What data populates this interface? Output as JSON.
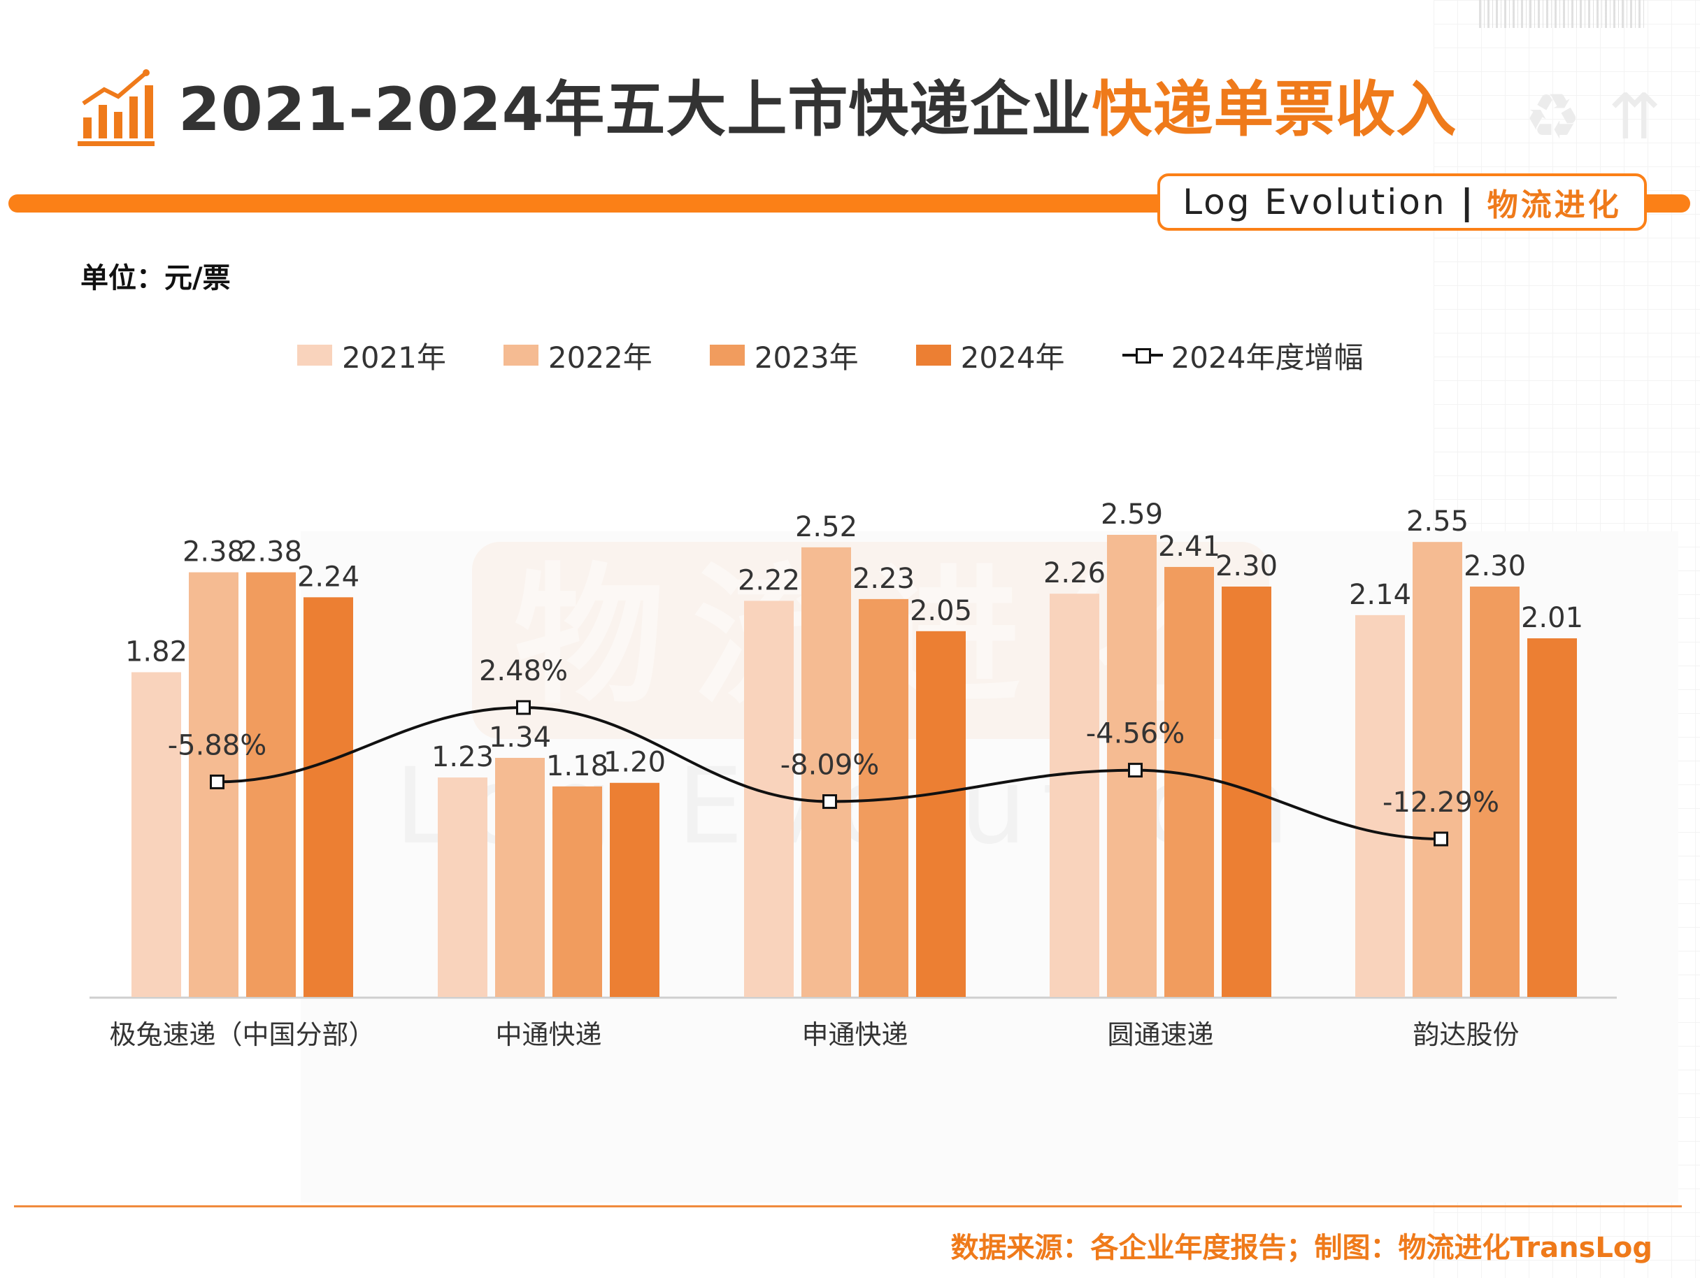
{
  "header": {
    "title_main": "2021-2024年五大上市快递企业",
    "title_highlight": "快递单票收入"
  },
  "brand": {
    "name_en": "Log Evolution",
    "separator": "|",
    "name_cn": "物流进化"
  },
  "unit_label": "单位：元/票",
  "watermark": {
    "cn": "物流进化",
    "en": "Log Evolution"
  },
  "legend": {
    "items": [
      {
        "label": "2021年",
        "color": "#f9d3bc"
      },
      {
        "label": "2022年",
        "color": "#f5bb92"
      },
      {
        "label": "2023年",
        "color": "#f19c5e"
      },
      {
        "label": "2024年",
        "color": "#ec7f33"
      }
    ],
    "line_label": "2024年度增幅"
  },
  "chart_data": {
    "type": "bar",
    "categories": [
      "极兔速递（中国分部）",
      "中通快递",
      "申通快递",
      "圆通速递",
      "韵达股份"
    ],
    "series": [
      {
        "name": "2021年",
        "values": [
          1.82,
          1.23,
          2.22,
          2.26,
          2.14
        ],
        "labels": [
          "1.82",
          "1.23",
          "2.22",
          "2.26",
          "2.14"
        ],
        "color": "#f9d3bc"
      },
      {
        "name": "2022年",
        "values": [
          2.38,
          1.34,
          2.52,
          2.59,
          2.55
        ],
        "labels": [
          "2.38",
          "1.34",
          "2.52",
          "2.59",
          "2.55"
        ],
        "color": "#f5bb92"
      },
      {
        "name": "2023年",
        "values": [
          2.38,
          1.18,
          2.23,
          2.41,
          2.3
        ],
        "labels": [
          "2.38",
          "1.18",
          "2.23",
          "2.41",
          "2.30"
        ],
        "color": "#f19c5e"
      },
      {
        "name": "2024年",
        "values": [
          2.24,
          1.2,
          2.05,
          2.3,
          2.01
        ],
        "labels": [
          "2.24",
          "1.20",
          "2.05",
          "2.30",
          "2.01"
        ],
        "color": "#ec7f33"
      }
    ],
    "line_series": {
      "name": "2024年度增幅",
      "values": [
        -5.88,
        2.48,
        -8.09,
        -4.56,
        -12.29
      ],
      "labels": [
        "-5.88%",
        "2.48%",
        "-8.09%",
        "-4.56%",
        "-12.29%"
      ],
      "unit": "%",
      "color": "#111111"
    },
    "ylim": [
      0,
      2.59
    ],
    "line_ylim": [
      -12.29,
      2.48
    ],
    "grid": false,
    "legend_position": "top"
  },
  "footer": {
    "source": "数据来源：各企业年度报告；制图：物流进化TransLog"
  }
}
